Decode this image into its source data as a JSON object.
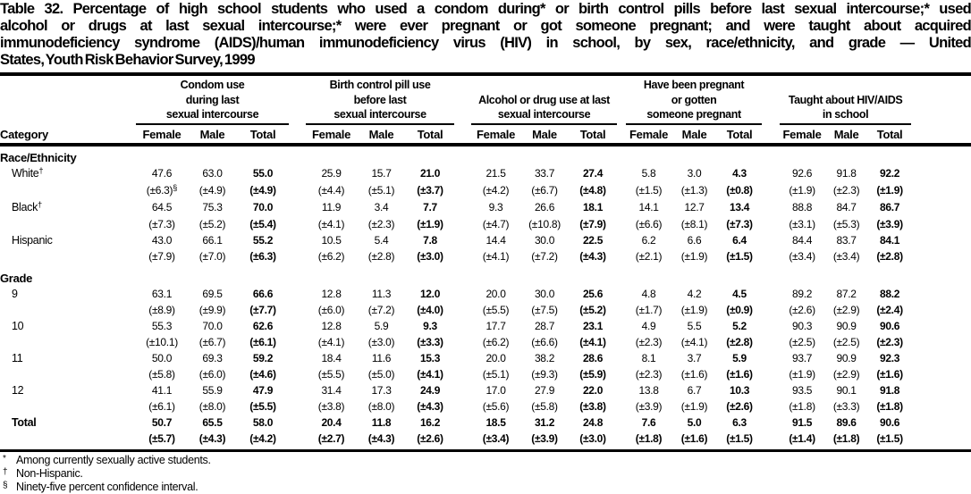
{
  "page": {
    "background": "#ffffff",
    "text_color": "#000000"
  },
  "title_lines": [
    "Table 32. Percentage of high school students who used a condom during* or birth control pills before last sexual intercourse;* used",
    "alcohol or drugs at last sexual intercourse;* were ever pregnant or got someone pregnant; and were taught about acquired",
    "immunodeficiency syndrome (AIDS)/human immunodeficiency virus (HIV) in school, by sex, race/ethnicity, and grade — United",
    "States, Youth Risk Behavior Survey, 1999"
  ],
  "table": {
    "category_header": "Category",
    "sub_headers": [
      "Female",
      "Male",
      "Total"
    ],
    "groups": [
      {
        "name": "condom-use",
        "label_lines": [
          "Condom use",
          "during last",
          "sexual intercourse"
        ]
      },
      {
        "name": "birth-control-pill-use",
        "label_lines": [
          "Birth control pill use",
          "before last",
          "sexual intercourse"
        ]
      },
      {
        "name": "alcohol-drug-use",
        "label_lines": [
          "Alcohol or drug use at last",
          "sexual intercourse"
        ]
      },
      {
        "name": "pregnancy",
        "label_lines": [
          "Have been pregnant",
          "or gotten",
          "someone pregnant"
        ]
      },
      {
        "name": "taught-hiv-aids",
        "label_lines": [
          "Taught about HIV/AIDS",
          "in school"
        ]
      }
    ],
    "sections": [
      {
        "label": "Race/Ethnicity",
        "rows": [
          {
            "label": "White",
            "label_sup": "†",
            "values": [
              "47.6",
              "63.0",
              "55.0",
              "25.9",
              "15.7",
              "21.0",
              "21.5",
              "33.7",
              "27.4",
              "5.8",
              "3.0",
              "4.3",
              "92.6",
              "91.8",
              "92.2"
            ],
            "ci": [
              {
                "t": "(±6.3)",
                "sup": "§"
              },
              "(±4.9)",
              "(±4.9)",
              "(±4.4)",
              "(±5.1)",
              "(±3.7)",
              "(±4.2)",
              "(±6.7)",
              "(±4.8)",
              "(±1.5)",
              "(±1.3)",
              "(±0.8)",
              "(±1.9)",
              "(±2.3)",
              "(±1.9)"
            ]
          },
          {
            "label": "Black",
            "label_sup": "†",
            "values": [
              "64.5",
              "75.3",
              "70.0",
              "11.9",
              "3.4",
              "7.7",
              "9.3",
              "26.6",
              "18.1",
              "14.1",
              "12.7",
              "13.4",
              "88.8",
              "84.7",
              "86.7"
            ],
            "ci": [
              "(±7.3)",
              "(±5.2)",
              "(±5.4)",
              "(±4.1)",
              "(±2.3)",
              "(±1.9)",
              "(±4.7)",
              "(±10.8)",
              "(±7.9)",
              "(±6.6)",
              "(±8.1)",
              "(±7.3)",
              "(±3.1)",
              "(±5.3)",
              "(±3.9)"
            ]
          },
          {
            "label": "Hispanic",
            "values": [
              "43.0",
              "66.1",
              "55.2",
              "10.5",
              "5.4",
              "7.8",
              "14.4",
              "30.0",
              "22.5",
              "6.2",
              "6.6",
              "6.4",
              "84.4",
              "83.7",
              "84.1"
            ],
            "ci": [
              "(±7.9)",
              "(±7.0)",
              "(±6.3)",
              "(±6.2)",
              "(±2.8)",
              "(±3.0)",
              "(±4.1)",
              "(±7.2)",
              "(±4.3)",
              "(±2.1)",
              "(±1.9)",
              "(±1.5)",
              "(±3.4)",
              "(±3.4)",
              "(±2.8)"
            ]
          }
        ]
      },
      {
        "label": "Grade",
        "rows": [
          {
            "label": "9",
            "values": [
              "63.1",
              "69.5",
              "66.6",
              "12.8",
              "11.3",
              "12.0",
              "20.0",
              "30.0",
              "25.6",
              "4.8",
              "4.2",
              "4.5",
              "89.2",
              "87.2",
              "88.2"
            ],
            "ci": [
              "(±8.9)",
              "(±9.9)",
              "(±7.7)",
              "(±6.0)",
              "(±7.2)",
              "(±4.0)",
              "(±5.5)",
              "(±7.5)",
              "(±5.2)",
              "(±1.7)",
              "(±1.9)",
              "(±0.9)",
              "(±2.6)",
              "(±2.9)",
              "(±2.4)"
            ]
          },
          {
            "label": "10",
            "values": [
              "55.3",
              "70.0",
              "62.6",
              "12.8",
              "5.9",
              "9.3",
              "17.7",
              "28.7",
              "23.1",
              "4.9",
              "5.5",
              "5.2",
              "90.3",
              "90.9",
              "90.6"
            ],
            "ci": [
              "(±10.1)",
              "(±6.7)",
              "(±6.1)",
              "(±4.1)",
              "(±3.0)",
              "(±3.3)",
              "(±6.2)",
              "(±6.6)",
              "(±4.1)",
              "(±2.3)",
              "(±4.1)",
              "(±2.8)",
              "(±2.5)",
              "(±2.5)",
              "(±2.3)"
            ]
          },
          {
            "label": "11",
            "values": [
              "50.0",
              "69.3",
              "59.2",
              "18.4",
              "11.6",
              "15.3",
              "20.0",
              "38.2",
              "28.6",
              "8.1",
              "3.7",
              "5.9",
              "93.7",
              "90.9",
              "92.3"
            ],
            "ci": [
              "(±5.8)",
              "(±6.0)",
              "(±4.6)",
              "(±5.5)",
              "(±5.0)",
              "(±4.1)",
              "(±5.1)",
              "(±9.3)",
              "(±5.9)",
              "(±2.3)",
              "(±1.6)",
              "(±1.6)",
              "(±1.9)",
              "(±2.9)",
              "(±1.6)"
            ]
          },
          {
            "label": "12",
            "values": [
              "41.1",
              "55.9",
              "47.9",
              "31.4",
              "17.3",
              "24.9",
              "17.0",
              "27.9",
              "22.0",
              "13.8",
              "6.7",
              "10.3",
              "93.5",
              "90.1",
              "91.8"
            ],
            "ci": [
              "(±6.1)",
              "(±8.0)",
              "(±5.5)",
              "(±3.8)",
              "(±8.0)",
              "(±4.3)",
              "(±5.6)",
              "(±5.8)",
              "(±3.8)",
              "(±3.9)",
              "(±1.9)",
              "(±2.6)",
              "(±1.8)",
              "(±3.3)",
              "(±1.8)"
            ]
          }
        ]
      }
    ],
    "total_row": {
      "label": "Total",
      "bold": true,
      "values": [
        "50.7",
        "65.5",
        "58.0",
        "20.4",
        "11.8",
        "16.2",
        "18.5",
        "31.2",
        "24.8",
        "7.6",
        "5.0",
        "6.3",
        "91.5",
        "89.6",
        "90.6"
      ],
      "ci": [
        "(±5.7)",
        "(±4.3)",
        "(±4.2)",
        "(±2.7)",
        "(±4.3)",
        "(±2.6)",
        "(±3.4)",
        "(±3.9)",
        "(±3.0)",
        "(±1.8)",
        "(±1.6)",
        "(±1.5)",
        "(±1.4)",
        "(±1.8)",
        "(±1.5)"
      ]
    }
  },
  "footnotes": [
    {
      "symbol": "*",
      "text": "Among currently sexually active students."
    },
    {
      "symbol": "†",
      "text": "Non-Hispanic."
    },
    {
      "symbol": "§",
      "text": "Ninety-five percent confidence interval."
    }
  ]
}
